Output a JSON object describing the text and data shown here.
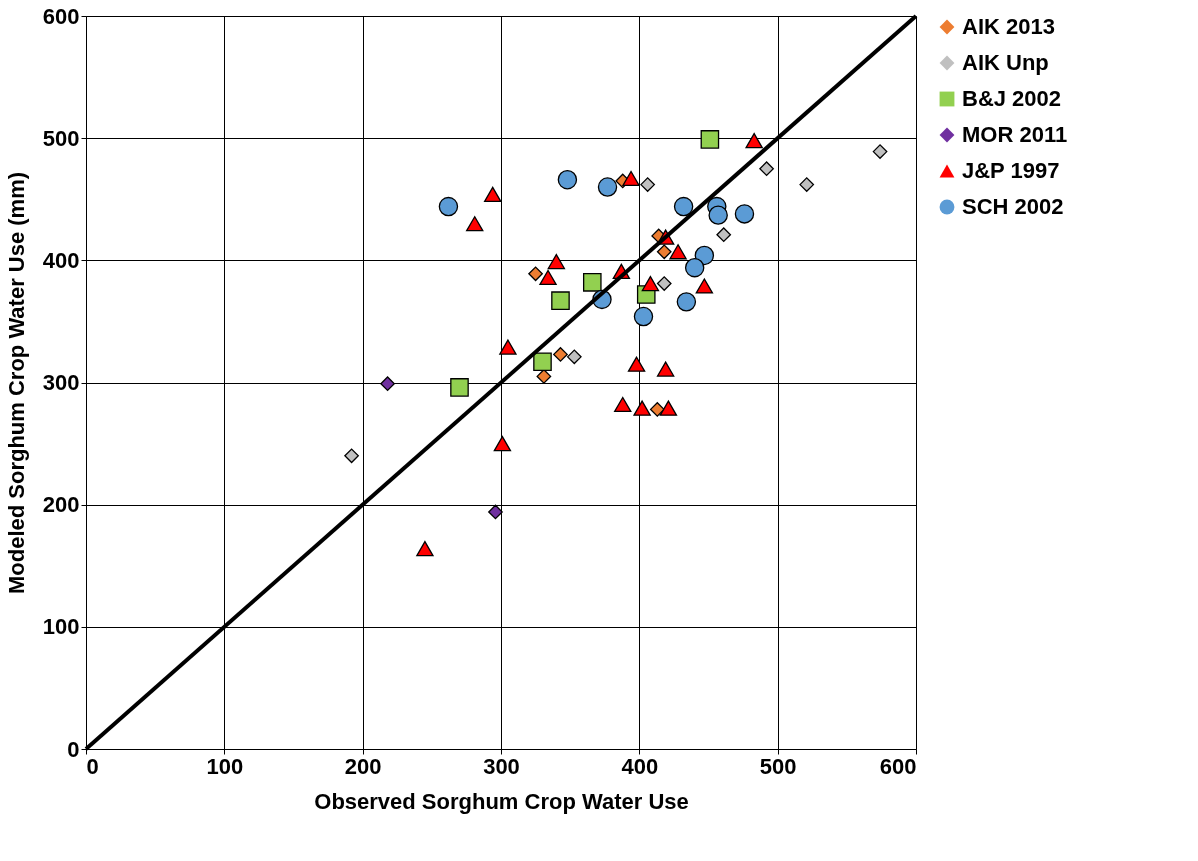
{
  "chart_data": {
    "type": "scatter",
    "xlabel": "Observed Sorghum Crop Water Use",
    "ylabel": "Modeled Sorghum Crop Water Use (mm)",
    "xlim": [
      0,
      600
    ],
    "ylim": [
      0,
      600
    ],
    "xticks": [
      0,
      100,
      200,
      300,
      400,
      500,
      600
    ],
    "yticks": [
      0,
      100,
      200,
      300,
      400,
      500,
      600
    ],
    "grid": true,
    "legend": "right",
    "series": [
      {
        "name": "AIK 2013",
        "color": "#ed7d31",
        "marker": "diamond",
        "x": [
          325,
          388,
          331,
          343,
          414,
          418,
          413
        ],
        "values": [
          389,
          465,
          305,
          323,
          420,
          407,
          278
        ]
      },
      {
        "name": "AIK Unp",
        "color": "#c0c0c0",
        "marker": "diamond",
        "x": [
          192,
          406,
          492,
          521,
          461,
          418,
          353,
          574
        ],
        "values": [
          240,
          462,
          475,
          462,
          421,
          381,
          321,
          489
        ]
      },
      {
        "name": "B&J 2002",
        "color": "#92d050",
        "marker": "square",
        "x": [
          451,
          366,
          343,
          330,
          270,
          405
        ],
        "values": [
          499,
          382,
          367,
          317,
          296,
          372
        ]
      },
      {
        "name": "MOR 2011",
        "color": "#7030a0",
        "marker": "diamond",
        "x": [
          218,
          296
        ],
        "values": [
          299,
          194
        ]
      },
      {
        "name": "J&P 1997",
        "color": "#ff0000",
        "marker": "triangle",
        "x": [
          294,
          281,
          340,
          334,
          387,
          305,
          301,
          245,
          483,
          394,
          419,
          428,
          408,
          447,
          398,
          419,
          388,
          402,
          421
        ],
        "values": [
          454,
          430,
          399,
          386,
          391,
          329,
          250,
          164,
          498,
          467,
          419,
          407,
          381,
          379,
          315,
          311,
          282,
          279,
          279
        ]
      },
      {
        "name": "SCH 2002",
        "color": "#5b9bd5",
        "marker": "circle",
        "x": [
          262,
          348,
          377,
          373,
          432,
          456,
          457,
          476,
          447,
          440,
          434,
          403
        ],
        "values": [
          444,
          466,
          460,
          368,
          444,
          444,
          437,
          438,
          404,
          394,
          366,
          354
        ]
      },
      {
        "type": "line",
        "color": "#000000",
        "marker": "none",
        "x": [
          0,
          600
        ],
        "values": [
          0,
          600
        ]
      }
    ]
  }
}
